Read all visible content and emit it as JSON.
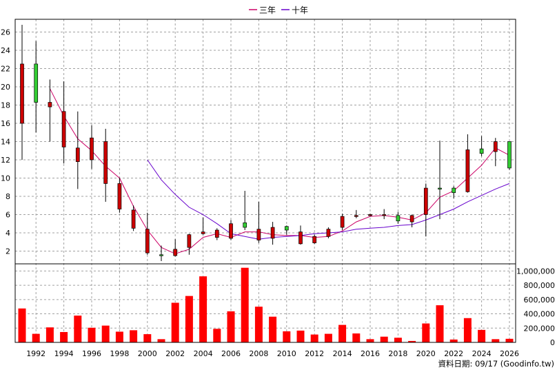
{
  "chart_data": {
    "type": "candlestick",
    "years": [
      1991,
      1992,
      1993,
      1994,
      1995,
      1996,
      1997,
      1998,
      1999,
      2000,
      2001,
      2002,
      2003,
      2004,
      2005,
      2006,
      2007,
      2008,
      2009,
      2010,
      2011,
      2012,
      2013,
      2014,
      2015,
      2016,
      2017,
      2018,
      2019,
      2020,
      2021,
      2022,
      2023,
      2024,
      2025,
      2026
    ],
    "ohlc": [
      {
        "o": 22.5,
        "h": 26.8,
        "l": 12.0,
        "c": 16.0
      },
      {
        "o": 18.3,
        "h": 25.0,
        "l": 15.0,
        "c": 22.5
      },
      {
        "o": 18.3,
        "h": 20.8,
        "l": 14.0,
        "c": 17.8
      },
      {
        "o": 17.3,
        "h": 20.6,
        "l": 11.6,
        "c": 13.4
      },
      {
        "o": 13.3,
        "h": 17.3,
        "l": 8.8,
        "c": 11.8
      },
      {
        "o": 14.4,
        "h": 15.8,
        "l": 11.0,
        "c": 12.0
      },
      {
        "o": 14.0,
        "h": 15.4,
        "l": 7.4,
        "c": 9.4
      },
      {
        "o": 9.4,
        "h": 10.0,
        "l": 6.2,
        "c": 6.6
      },
      {
        "o": 6.5,
        "h": 7.0,
        "l": 4.2,
        "c": 4.5
      },
      {
        "o": 4.4,
        "h": 6.2,
        "l": 1.6,
        "c": 1.8
      },
      {
        "o": 1.5,
        "h": 2.6,
        "l": 0.9,
        "c": 1.6
      },
      {
        "o": 2.2,
        "h": 3.3,
        "l": 1.4,
        "c": 1.5
      },
      {
        "o": 3.8,
        "h": 3.9,
        "l": 1.6,
        "c": 2.4
      },
      {
        "o": 4.1,
        "h": 5.7,
        "l": 3.8,
        "c": 3.9
      },
      {
        "o": 4.3,
        "h": 4.5,
        "l": 3.2,
        "c": 3.5
      },
      {
        "o": 5.0,
        "h": 5.4,
        "l": 3.2,
        "c": 3.4
      },
      {
        "o": 4.6,
        "h": 8.6,
        "l": 4.3,
        "c": 5.1
      },
      {
        "o": 4.4,
        "h": 7.4,
        "l": 2.9,
        "c": 3.2
      },
      {
        "o": 4.6,
        "h": 5.2,
        "l": 2.7,
        "c": 3.4
      },
      {
        "o": 4.3,
        "h": 4.8,
        "l": 3.8,
        "c": 4.7
      },
      {
        "o": 4.1,
        "h": 4.8,
        "l": 2.7,
        "c": 2.8
      },
      {
        "o": 3.6,
        "h": 3.8,
        "l": 2.8,
        "c": 2.9
      },
      {
        "o": 4.4,
        "h": 4.6,
        "l": 3.4,
        "c": 3.6
      },
      {
        "o": 5.8,
        "h": 6.1,
        "l": 4.3,
        "c": 4.6
      },
      {
        "o": 5.9,
        "h": 6.5,
        "l": 5.6,
        "c": 5.8
      },
      {
        "o": 6.0,
        "h": 6.1,
        "l": 5.8,
        "c": 5.9
      },
      {
        "o": 6.0,
        "h": 6.6,
        "l": 5.5,
        "c": 5.9
      },
      {
        "o": 5.3,
        "h": 6.3,
        "l": 5.0,
        "c": 5.9
      },
      {
        "o": 5.9,
        "h": 6.0,
        "l": 4.6,
        "c": 5.2
      },
      {
        "o": 8.9,
        "h": 9.4,
        "l": 3.6,
        "c": 6.0
      },
      {
        "o": 8.9,
        "h": 14.1,
        "l": 5.5,
        "c": 8.9
      },
      {
        "o": 8.4,
        "h": 9.1,
        "l": 7.8,
        "c": 8.9
      },
      {
        "o": 13.1,
        "h": 14.8,
        "l": 8.4,
        "c": 8.5
      },
      {
        "o": 12.7,
        "h": 14.6,
        "l": 12.4,
        "c": 13.2
      },
      {
        "o": 14.0,
        "h": 14.4,
        "l": 11.3,
        "c": 12.9
      },
      {
        "o": 11.1,
        "h": 14.0,
        "l": 10.9,
        "c": 14.0
      }
    ],
    "volume": [
      475000,
      120000,
      210000,
      145000,
      375000,
      205000,
      235000,
      150000,
      170000,
      115000,
      45000,
      555000,
      650000,
      925000,
      190000,
      435000,
      1045000,
      500000,
      360000,
      155000,
      165000,
      110000,
      120000,
      245000,
      125000,
      45000,
      80000,
      65000,
      20000,
      265000,
      520000,
      40000,
      340000,
      175000,
      45000,
      50000
    ],
    "ma3": {
      "name": "三年",
      "color": "#cc0066",
      "x": [
        1993,
        1994,
        1995,
        1996,
        1997,
        1998,
        1999,
        2000,
        2001,
        2002,
        2003,
        2004,
        2005,
        2006,
        2007,
        2008,
        2009,
        2010,
        2011,
        2012,
        2013,
        2014,
        2015,
        2016,
        2017,
        2018,
        2019,
        2020,
        2021,
        2022,
        2023,
        2024,
        2025,
        2026
      ],
      "y": [
        19.8,
        16.8,
        14.3,
        13.0,
        11.3,
        10.0,
        6.9,
        4.3,
        2.4,
        1.7,
        2.2,
        3.5,
        3.9,
        3.5,
        4.1,
        4.1,
        3.8,
        3.7,
        3.7,
        3.5,
        3.6,
        4.2,
        5.2,
        5.8,
        5.9,
        5.7,
        5.4,
        6.2,
        7.9,
        8.6,
        10.0,
        11.4,
        13.3,
        12.5
      ]
    },
    "ma10": {
      "name": "十年",
      "color": "#6600cc",
      "x": [
        2000,
        2001,
        2002,
        2003,
        2004,
        2005,
        2006,
        2007,
        2008,
        2009,
        2010,
        2011,
        2012,
        2013,
        2014,
        2015,
        2016,
        2017,
        2018,
        2019,
        2020,
        2021,
        2022,
        2023,
        2024,
        2025,
        2026
      ],
      "y": [
        12.0,
        9.8,
        8.2,
        6.8,
        6.0,
        5.0,
        3.9,
        3.6,
        3.3,
        3.5,
        3.6,
        3.7,
        3.9,
        4.0,
        4.1,
        4.4,
        4.5,
        4.6,
        4.8,
        4.9,
        5.4,
        6.0,
        6.6,
        7.4,
        8.1,
        8.8,
        9.4
      ]
    },
    "price_axis": {
      "ylim": [
        0.6,
        27.4
      ],
      "ticks": [
        2,
        4,
        6,
        8,
        10,
        12,
        14,
        16,
        18,
        20,
        22,
        24,
        26
      ]
    },
    "volume_axis": {
      "ylim": [
        0,
        1100000
      ],
      "ticks": [
        "0",
        "200,000",
        "400,000",
        "600,000",
        "800,000",
        "1,000,000"
      ]
    },
    "x_tick_labels": [
      "1992",
      "1994",
      "1996",
      "1998",
      "2000",
      "2002",
      "2004",
      "2006",
      "2008",
      "2010",
      "2012",
      "2014",
      "2016",
      "2018",
      "2020",
      "2022",
      "2024",
      "2026"
    ],
    "up_color": "#33cc33",
    "down_color": "#cc0000",
    "volume_color": "#ff0000",
    "grid": true,
    "legend_position": "top-center"
  },
  "legend": {
    "ma3_label": "三年",
    "ma10_label": "十年"
  },
  "footer": {
    "text": "資料日期: 09/17  (Goodinfo.tw)"
  }
}
